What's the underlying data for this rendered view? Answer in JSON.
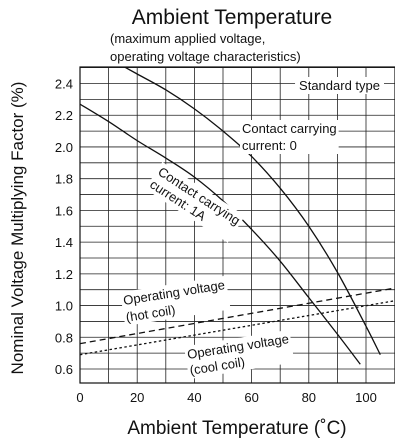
{
  "chart_data": {
    "type": "line",
    "title": "Ambient Temperature",
    "subtitle_lines": [
      "(maximum applied voltage,",
      "operating voltage characteristics)"
    ],
    "xlabel": "Ambient Temperature (˚C)",
    "ylabel": "Nominal Voltage Multiplying Factor (%)",
    "xlim": [
      0,
      110
    ],
    "ylim": [
      0.5,
      2.55
    ],
    "x_ticks": [
      0,
      20,
      40,
      60,
      80,
      100
    ],
    "y_ticks": [
      0.6,
      0.8,
      1.0,
      1.2,
      1.4,
      1.6,
      1.8,
      2.0,
      2.2,
      2.4
    ],
    "grid": true,
    "annotation_box": "Standard type",
    "series": [
      {
        "name": "Contact carrying current: 0",
        "style": "solid",
        "label_lines": [
          "Contact carrying",
          "current: 0"
        ],
        "points": [
          [
            15,
            2.51
          ],
          [
            20,
            2.46
          ],
          [
            30,
            2.36
          ],
          [
            40,
            2.24
          ],
          [
            50,
            2.1
          ],
          [
            60,
            1.94
          ],
          [
            70,
            1.74
          ],
          [
            80,
            1.5
          ],
          [
            90,
            1.21
          ],
          [
            100,
            0.87
          ],
          [
            105,
            0.69
          ]
        ]
      },
      {
        "name": "Contact carrying current: 1A",
        "style": "solid",
        "label_lines": [
          "Contact carrying",
          "current: 1A"
        ],
        "points": [
          [
            0,
            2.27
          ],
          [
            10,
            2.16
          ],
          [
            20,
            2.04
          ],
          [
            30,
            1.93
          ],
          [
            40,
            1.81
          ],
          [
            50,
            1.66
          ],
          [
            60,
            1.48
          ],
          [
            70,
            1.28
          ],
          [
            80,
            1.05
          ],
          [
            90,
            0.82
          ],
          [
            98,
            0.63
          ]
        ]
      },
      {
        "name": "Operating voltage (hot coil)",
        "style": "dashed",
        "label_lines": [
          "Operating voltage",
          "(hot coil)"
        ],
        "points": [
          [
            0,
            0.76
          ],
          [
            110,
            1.11
          ]
        ]
      },
      {
        "name": "Operating voltage (cool coil)",
        "style": "dotted",
        "label_lines": [
          "Operating voltage",
          "(cool coil)"
        ],
        "points": [
          [
            0,
            0.69
          ],
          [
            110,
            1.03
          ]
        ]
      }
    ]
  }
}
